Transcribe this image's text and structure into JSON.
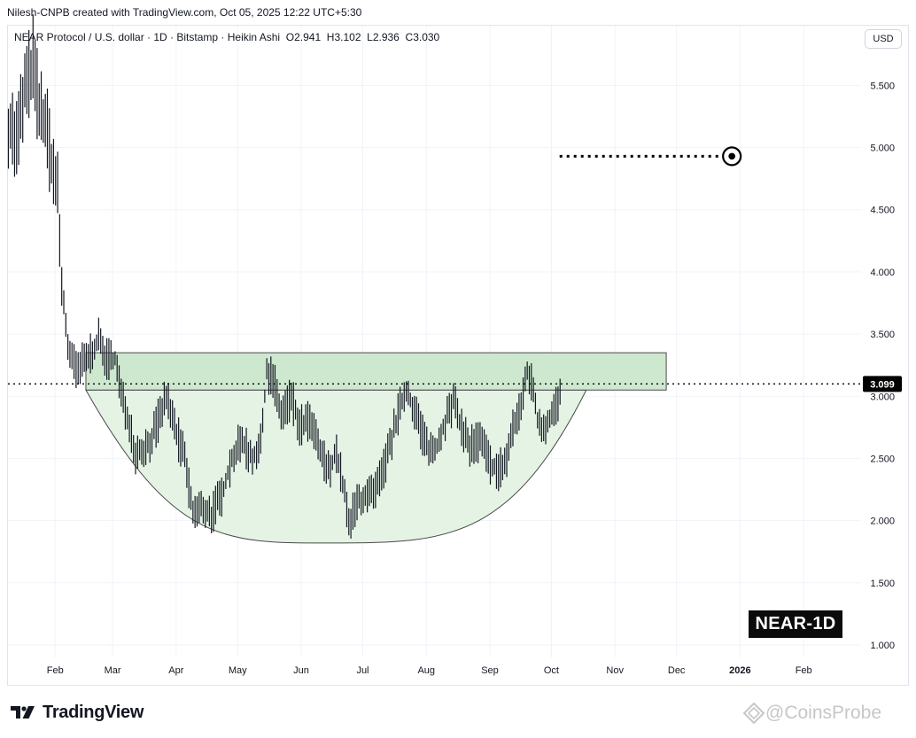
{
  "header": {
    "creator": "Nilesh-CNPB created with TradingView.com, Oct 05, 2025 12:22 UTC+5:30",
    "legend": "NEAR Protocol / U.S. dollar · 1D · Bitstamp · Heikin Ashi  O2.941  H3.102  L2.936  C3.030",
    "currency_button": "USD"
  },
  "badge": "NEAR-1D",
  "branding": {
    "logo_icon": "tradingview-logo-icon",
    "logo_text": "TradingView",
    "watermark": "@CoinsProbe"
  },
  "colors": {
    "zone_fill": "#c8e6c9",
    "cup_fill": "#e3f2e3",
    "outline": "#4a4a4a",
    "bars": "#131722",
    "badge_bg": "#0b0b0b"
  },
  "chart_data": {
    "type": "ohlc",
    "title": "NEAR Protocol / U.S. dollar · 1D · Bitstamp · Heikin Ashi",
    "x_labels": [
      "Feb",
      "Mar",
      "Apr",
      "May",
      "Jun",
      "Jul",
      "Aug",
      "Sep",
      "Oct",
      "Nov",
      "Dec",
      "2026",
      "Feb"
    ],
    "y_ticks": [
      "5.500",
      "5.000",
      "4.500",
      "4.000",
      "3.500",
      "3.000",
      "2.500",
      "2.000",
      "1.500",
      "1.000"
    ],
    "ylim": [
      0.9,
      5.98
    ],
    "x_range": [
      "2025-01-09",
      "2026-03-01"
    ],
    "current_price": "3.099",
    "ohlc_last": {
      "open": 2.941,
      "high": 3.102,
      "low": 2.936,
      "close": 3.03
    },
    "resistance_zone": {
      "low": 3.05,
      "high": 3.35,
      "from": "2025-02-16",
      "to": "2025-11-26"
    },
    "cup_pattern": {
      "left_rim_date": "2025-02-16",
      "bottom_date": "2025-06-22",
      "bottom_value": 1.82,
      "right_rim_date": "2025-10-18",
      "rim_value": 3.05
    },
    "target": {
      "value": 4.93,
      "from": "2025-10-05",
      "to": "2025-12-28"
    },
    "price_path": [
      [
        "2025-01-09",
        5.2
      ],
      [
        "2025-01-13",
        5.05
      ],
      [
        "2025-01-17",
        5.45
      ],
      [
        "2025-01-21",
        5.7
      ],
      [
        "2025-01-24",
        5.3
      ],
      [
        "2025-01-27",
        5.2
      ],
      [
        "2025-01-30",
        4.9
      ],
      [
        "2025-02-02",
        4.6
      ],
      [
        "2025-02-04",
        3.9
      ],
      [
        "2025-02-07",
        3.4
      ],
      [
        "2025-02-11",
        3.2
      ],
      [
        "2025-02-16",
        3.3
      ],
      [
        "2025-02-22",
        3.45
      ],
      [
        "2025-02-26",
        3.3
      ],
      [
        "2025-03-02",
        3.3
      ],
      [
        "2025-03-05",
        3.0
      ],
      [
        "2025-03-09",
        2.8
      ],
      [
        "2025-03-12",
        2.55
      ],
      [
        "2025-03-18",
        2.6
      ],
      [
        "2025-03-22",
        2.75
      ],
      [
        "2025-03-27",
        3.0
      ],
      [
        "2025-04-01",
        2.7
      ],
      [
        "2025-04-05",
        2.5
      ],
      [
        "2025-04-09",
        2.05
      ],
      [
        "2025-04-14",
        2.1
      ],
      [
        "2025-04-18",
        2.05
      ],
      [
        "2025-04-23",
        2.2
      ],
      [
        "2025-04-28",
        2.5
      ],
      [
        "2025-05-03",
        2.65
      ],
      [
        "2025-05-08",
        2.5
      ],
      [
        "2025-05-12",
        2.6
      ],
      [
        "2025-05-15",
        3.2
      ],
      [
        "2025-05-18",
        3.15
      ],
      [
        "2025-05-22",
        2.85
      ],
      [
        "2025-05-27",
        3.0
      ],
      [
        "2025-05-31",
        2.75
      ],
      [
        "2025-06-05",
        2.8
      ],
      [
        "2025-06-10",
        2.55
      ],
      [
        "2025-06-14",
        2.4
      ],
      [
        "2025-06-18",
        2.55
      ],
      [
        "2025-06-22",
        2.2
      ],
      [
        "2025-06-24",
        1.95
      ],
      [
        "2025-06-28",
        2.15
      ],
      [
        "2025-07-02",
        2.2
      ],
      [
        "2025-07-06",
        2.2
      ],
      [
        "2025-07-10",
        2.35
      ],
      [
        "2025-07-14",
        2.6
      ],
      [
        "2025-07-18",
        2.85
      ],
      [
        "2025-07-22",
        3.05
      ],
      [
        "2025-07-27",
        2.85
      ],
      [
        "2025-08-01",
        2.6
      ],
      [
        "2025-08-05",
        2.55
      ],
      [
        "2025-08-10",
        2.8
      ],
      [
        "2025-08-14",
        2.95
      ],
      [
        "2025-08-18",
        2.75
      ],
      [
        "2025-08-22",
        2.6
      ],
      [
        "2025-08-27",
        2.65
      ],
      [
        "2025-09-01",
        2.45
      ],
      [
        "2025-09-05",
        2.4
      ],
      [
        "2025-09-09",
        2.5
      ],
      [
        "2025-09-12",
        2.75
      ],
      [
        "2025-09-15",
        2.85
      ],
      [
        "2025-09-19",
        3.2
      ],
      [
        "2025-09-22",
        3.05
      ],
      [
        "2025-09-24",
        2.8
      ],
      [
        "2025-09-27",
        2.75
      ],
      [
        "2025-10-01",
        2.85
      ],
      [
        "2025-10-05",
        3.0
      ]
    ]
  }
}
